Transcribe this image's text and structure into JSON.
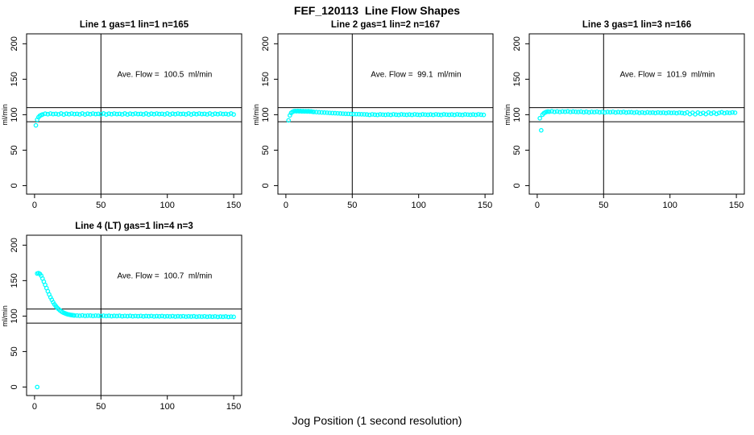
{
  "page": {
    "title": "FEF_120113  Line Flow Shapes",
    "xlabel": "Jog Position (1 second resolution)"
  },
  "chart_data": [
    {
      "type": "scatter",
      "title": "Line 1 gas=1 lin=1 n=165",
      "annotation": "Ave. Flow =  100.5  ml/min",
      "annotation_xy": [
        98,
        153
      ],
      "ylabel": "ml/min",
      "xlim": [
        -6,
        156
      ],
      "ylim": [
        -12,
        214
      ],
      "xticks": [
        0,
        50,
        100,
        150
      ],
      "yticks": [
        0,
        50,
        100,
        150,
        200
      ],
      "hlines": [
        90,
        110
      ],
      "vlines": [
        50
      ],
      "grid": false,
      "marker_color": "#00ffff",
      "points": [
        [
          1,
          85
        ],
        [
          2,
          93
        ],
        [
          3,
          96.5
        ],
        [
          4,
          98.5
        ],
        [
          5,
          99.5
        ],
        [
          6,
          100.3
        ],
        [
          8,
          101.4
        ],
        [
          10,
          100.7
        ],
        [
          12,
          101.6
        ],
        [
          14,
          100.9
        ],
        [
          16,
          101.2
        ],
        [
          18,
          100.5
        ],
        [
          20,
          101.7
        ],
        [
          22,
          100.3
        ],
        [
          24,
          101.4
        ],
        [
          26,
          100.7
        ],
        [
          28,
          101.6
        ],
        [
          30,
          100.9
        ],
        [
          32,
          101.2
        ],
        [
          34,
          100.5
        ],
        [
          36,
          101.7
        ],
        [
          38,
          100.3
        ],
        [
          40,
          101.4
        ],
        [
          42,
          100.7
        ],
        [
          44,
          101.6
        ],
        [
          46,
          100.9
        ],
        [
          48,
          101.2
        ],
        [
          50,
          100.5
        ],
        [
          52,
          101.7
        ],
        [
          54,
          100.3
        ],
        [
          56,
          101.4
        ],
        [
          58,
          100.7
        ],
        [
          60,
          101.6
        ],
        [
          62,
          100.9
        ],
        [
          64,
          101.2
        ],
        [
          66,
          100.5
        ],
        [
          68,
          101.7
        ],
        [
          70,
          100.3
        ],
        [
          72,
          101.4
        ],
        [
          74,
          100.7
        ],
        [
          76,
          101.6
        ],
        [
          78,
          100.9
        ],
        [
          80,
          101.2
        ],
        [
          82,
          100.5
        ],
        [
          84,
          101.7
        ],
        [
          86,
          100.3
        ],
        [
          88,
          101.4
        ],
        [
          90,
          100.7
        ],
        [
          92,
          101.6
        ],
        [
          94,
          100.9
        ],
        [
          96,
          101.2
        ],
        [
          98,
          100.5
        ],
        [
          100,
          101.7
        ],
        [
          102,
          100.3
        ],
        [
          104,
          101.4
        ],
        [
          106,
          100.7
        ],
        [
          108,
          101.6
        ],
        [
          110,
          100.9
        ],
        [
          112,
          101.2
        ],
        [
          114,
          100.5
        ],
        [
          116,
          101.7
        ],
        [
          118,
          100.3
        ],
        [
          120,
          101.4
        ],
        [
          122,
          100.7
        ],
        [
          124,
          101.6
        ],
        [
          126,
          100.9
        ],
        [
          128,
          101.2
        ],
        [
          130,
          100.5
        ],
        [
          132,
          101.7
        ],
        [
          134,
          100.3
        ],
        [
          136,
          101.4
        ],
        [
          138,
          100.7
        ],
        [
          140,
          101.6
        ],
        [
          142,
          100.9
        ],
        [
          144,
          101.2
        ],
        [
          146,
          100.5
        ],
        [
          148,
          101.7
        ],
        [
          150,
          100.3
        ]
      ]
    },
    {
      "type": "scatter",
      "title": "Line 2 gas=1 lin=2 n=167",
      "annotation": "Ave. Flow =  99.1  ml/min",
      "annotation_xy": [
        98,
        153
      ],
      "ylabel": "ml/min",
      "xlim": [
        -6,
        156
      ],
      "ylim": [
        -12,
        214
      ],
      "xticks": [
        0,
        50,
        100,
        150
      ],
      "yticks": [
        0,
        50,
        100,
        150,
        200
      ],
      "hlines": [
        90,
        110
      ],
      "vlines": [
        50
      ],
      "grid": false,
      "marker_color": "#00ffff",
      "points": [
        [
          2,
          92
        ],
        [
          3,
          99
        ],
        [
          4,
          102.5
        ],
        [
          5,
          104
        ],
        [
          6,
          104.8
        ],
        [
          7,
          105.2
        ],
        [
          8,
          104.9
        ],
        [
          9,
          105.3
        ],
        [
          10,
          104.8
        ],
        [
          11,
          105.1
        ],
        [
          12,
          104.7
        ],
        [
          13,
          105.0
        ],
        [
          14,
          104.6
        ],
        [
          15,
          104.9
        ],
        [
          16,
          104.5
        ],
        [
          17,
          104.8
        ],
        [
          18,
          104.4
        ],
        [
          19,
          104.6
        ],
        [
          20,
          104.2
        ],
        [
          21,
          103.9
        ],
        [
          23,
          103.7
        ],
        [
          25,
          103.4
        ],
        [
          27,
          103.2
        ],
        [
          29,
          103.0
        ],
        [
          31,
          102.8
        ],
        [
          33,
          102.5
        ],
        [
          35,
          102.3
        ],
        [
          37,
          102.1
        ],
        [
          39,
          101.9
        ],
        [
          41,
          101.7
        ],
        [
          43,
          101.5
        ],
        [
          45,
          101.3
        ],
        [
          47,
          101.2
        ],
        [
          49,
          101.0
        ],
        [
          51,
          100.9
        ],
        [
          53,
          100.8
        ],
        [
          55,
          100.7
        ],
        [
          57,
          100.6
        ],
        [
          59,
          100.5
        ],
        [
          61,
          100.3
        ],
        [
          63,
          99.8
        ],
        [
          65,
          100.5
        ],
        [
          67,
          100.0
        ],
        [
          69,
          99.7
        ],
        [
          71,
          100.4
        ],
        [
          73,
          100.1
        ],
        [
          75,
          99.9
        ],
        [
          77,
          100.3
        ],
        [
          79,
          99.8
        ],
        [
          81,
          100.5
        ],
        [
          83,
          100.0
        ],
        [
          85,
          99.7
        ],
        [
          87,
          100.4
        ],
        [
          89,
          100.1
        ],
        [
          91,
          99.9
        ],
        [
          93,
          100.3
        ],
        [
          95,
          99.8
        ],
        [
          97,
          100.5
        ],
        [
          99,
          100.0
        ],
        [
          101,
          99.7
        ],
        [
          103,
          100.4
        ],
        [
          105,
          100.1
        ],
        [
          107,
          99.9
        ],
        [
          109,
          100.3
        ],
        [
          111,
          99.8
        ],
        [
          113,
          100.5
        ],
        [
          115,
          100.0
        ],
        [
          117,
          99.7
        ],
        [
          119,
          100.4
        ],
        [
          121,
          100.1
        ],
        [
          123,
          99.9
        ],
        [
          125,
          100.3
        ],
        [
          127,
          99.8
        ],
        [
          129,
          100.5
        ],
        [
          131,
          100.0
        ],
        [
          133,
          99.7
        ],
        [
          135,
          100.4
        ],
        [
          137,
          100.1
        ],
        [
          139,
          99.9
        ],
        [
          141,
          100.3
        ],
        [
          143,
          99.8
        ],
        [
          145,
          100.5
        ],
        [
          147,
          100.0
        ],
        [
          149,
          99.7
        ]
      ]
    },
    {
      "type": "scatter",
      "title": "Line 3 gas=1 lin=3 n=166",
      "annotation": "Ave. Flow =  101.9  ml/min",
      "annotation_xy": [
        98,
        153
      ],
      "ylabel": "ml/min",
      "xlim": [
        -6,
        156
      ],
      "ylim": [
        -12,
        214
      ],
      "xticks": [
        0,
        50,
        100,
        150
      ],
      "yticks": [
        0,
        50,
        100,
        150,
        200
      ],
      "hlines": [
        90,
        110
      ],
      "vlines": [
        50
      ],
      "grid": false,
      "marker_color": "#00ffff",
      "points": [
        [
          2,
          95
        ],
        [
          3,
          78
        ],
        [
          4,
          100
        ],
        [
          5,
          102
        ],
        [
          6,
          103.2
        ],
        [
          7,
          104
        ],
        [
          8,
          104.5
        ],
        [
          9,
          104.2
        ],
        [
          11,
          104.8
        ],
        [
          13,
          104.0
        ],
        [
          15,
          104.6
        ],
        [
          17,
          103.8
        ],
        [
          19,
          104.5
        ],
        [
          21,
          104.1
        ],
        [
          23,
          104.7
        ],
        [
          25,
          103.9
        ],
        [
          27,
          104.4
        ],
        [
          29,
          104.0
        ],
        [
          31,
          103.8
        ],
        [
          33,
          104.3
        ],
        [
          35,
          103.5
        ],
        [
          37,
          104.1
        ],
        [
          39,
          103.3
        ],
        [
          41,
          104.0
        ],
        [
          43,
          103.6
        ],
        [
          45,
          104.2
        ],
        [
          47,
          103.4
        ],
        [
          49,
          103.9
        ],
        [
          51,
          103.2
        ],
        [
          53,
          103.8
        ],
        [
          55,
          103.5
        ],
        [
          57,
          104.0
        ],
        [
          59,
          103.1
        ],
        [
          61,
          103.7
        ],
        [
          63,
          103.3
        ],
        [
          65,
          103.8
        ],
        [
          67,
          103.0
        ],
        [
          69,
          103.5
        ],
        [
          71,
          103.4
        ],
        [
          73,
          102.8
        ],
        [
          75,
          103.5
        ],
        [
          77,
          102.6
        ],
        [
          79,
          103.2
        ],
        [
          81,
          102.5
        ],
        [
          83,
          103.3
        ],
        [
          85,
          102.7
        ],
        [
          87,
          103.0
        ],
        [
          89,
          102.4
        ],
        [
          91,
          103.1
        ],
        [
          93,
          102.6
        ],
        [
          95,
          102.9
        ],
        [
          97,
          102.3
        ],
        [
          99,
          103.0
        ],
        [
          101,
          102.5
        ],
        [
          103,
          102.8
        ],
        [
          105,
          102.2
        ],
        [
          107,
          102.9
        ],
        [
          109,
          102.4
        ],
        [
          111,
          101.8
        ],
        [
          113,
          103.2
        ],
        [
          115,
          100.9
        ],
        [
          117,
          102.8
        ],
        [
          119,
          100.6
        ],
        [
          121,
          103.0
        ],
        [
          123,
          101.2
        ],
        [
          125,
          102.5
        ],
        [
          127,
          100.9
        ],
        [
          129,
          103.1
        ],
        [
          131,
          101.5
        ],
        [
          133,
          102.9
        ],
        [
          135,
          101.1
        ],
        [
          137,
          102.6
        ],
        [
          139,
          103.4
        ],
        [
          141,
          102.2
        ],
        [
          143,
          103.0
        ],
        [
          145,
          102.5
        ],
        [
          147,
          103.2
        ],
        [
          149,
          102.8
        ]
      ]
    },
    {
      "type": "scatter",
      "title": "Line 4 (LT) gas=1 lin=4 n=3",
      "annotation": "Ave. Flow =  100.7  ml/min",
      "annotation_xy": [
        98,
        153
      ],
      "ylabel": "ml/min",
      "xlim": [
        -6,
        156
      ],
      "ylim": [
        -12,
        214
      ],
      "xticks": [
        0,
        50,
        100,
        150
      ],
      "yticks": [
        0,
        50,
        100,
        150,
        200
      ],
      "hlines": [
        90,
        110
      ],
      "vlines": [
        50
      ],
      "grid": false,
      "marker_color": "#00ffff",
      "points": [
        [
          2,
          0
        ],
        [
          2,
          160
        ],
        [
          3,
          160.5
        ],
        [
          4,
          159.5
        ],
        [
          5,
          157
        ],
        [
          6,
          153
        ],
        [
          7,
          148.5
        ],
        [
          8,
          144
        ],
        [
          9,
          139.5
        ],
        [
          10,
          135
        ],
        [
          11,
          130.5
        ],
        [
          12,
          126.5
        ],
        [
          13,
          123
        ],
        [
          14,
          119.5
        ],
        [
          15,
          116.5
        ],
        [
          16,
          114
        ],
        [
          17,
          111.8
        ],
        [
          18,
          110
        ],
        [
          19,
          108.3
        ],
        [
          20,
          106.8
        ],
        [
          21,
          105.6
        ],
        [
          22,
          104.6
        ],
        [
          23,
          103.8
        ],
        [
          24,
          103.1
        ],
        [
          25,
          102.5
        ],
        [
          26,
          102.1
        ],
        [
          27,
          101.7
        ],
        [
          28,
          101.4
        ],
        [
          29,
          101.1
        ],
        [
          30,
          100.9
        ],
        [
          32,
          100.8
        ],
        [
          34,
          100.4
        ],
        [
          36,
          100.9
        ],
        [
          38,
          100.3
        ],
        [
          40,
          100.6
        ],
        [
          42,
          100.7
        ],
        [
          44,
          100.2
        ],
        [
          46,
          100.6
        ],
        [
          48,
          100.4
        ],
        [
          50,
          100.0
        ],
        [
          52,
          100.5
        ],
        [
          54,
          100.1
        ],
        [
          56,
          100.4
        ],
        [
          58,
          99.9
        ],
        [
          60,
          100.3
        ],
        [
          62,
          100.0
        ],
        [
          64,
          100.4
        ],
        [
          66,
          99.8
        ],
        [
          68,
          100.2
        ],
        [
          70,
          99.9
        ],
        [
          72,
          100.3
        ],
        [
          74,
          99.7
        ],
        [
          76,
          100.1
        ],
        [
          78,
          99.8
        ],
        [
          80,
          100.2
        ],
        [
          82,
          99.6
        ],
        [
          84,
          100.0
        ],
        [
          86,
          99.7
        ],
        [
          88,
          100.1
        ],
        [
          90,
          99.5
        ],
        [
          92,
          99.9
        ],
        [
          94,
          99.6
        ],
        [
          96,
          100.0
        ],
        [
          98,
          99.4
        ],
        [
          100,
          99.8
        ],
        [
          102,
          99.5
        ],
        [
          104,
          99.9
        ],
        [
          106,
          99.3
        ],
        [
          108,
          99.7
        ],
        [
          110,
          99.4
        ],
        [
          112,
          99.8
        ],
        [
          114,
          99.2
        ],
        [
          116,
          99.6
        ],
        [
          118,
          99.3
        ],
        [
          120,
          99.7
        ],
        [
          122,
          99.1
        ],
        [
          124,
          99.5
        ],
        [
          126,
          99.2
        ],
        [
          128,
          99.6
        ],
        [
          130,
          99.0
        ],
        [
          132,
          99.4
        ],
        [
          134,
          99.1
        ],
        [
          136,
          99.5
        ],
        [
          138,
          98.9
        ],
        [
          140,
          99.3
        ],
        [
          142,
          99.0
        ],
        [
          144,
          99.4
        ],
        [
          146,
          98.8
        ],
        [
          148,
          99.2
        ],
        [
          150,
          98.9
        ]
      ]
    }
  ]
}
